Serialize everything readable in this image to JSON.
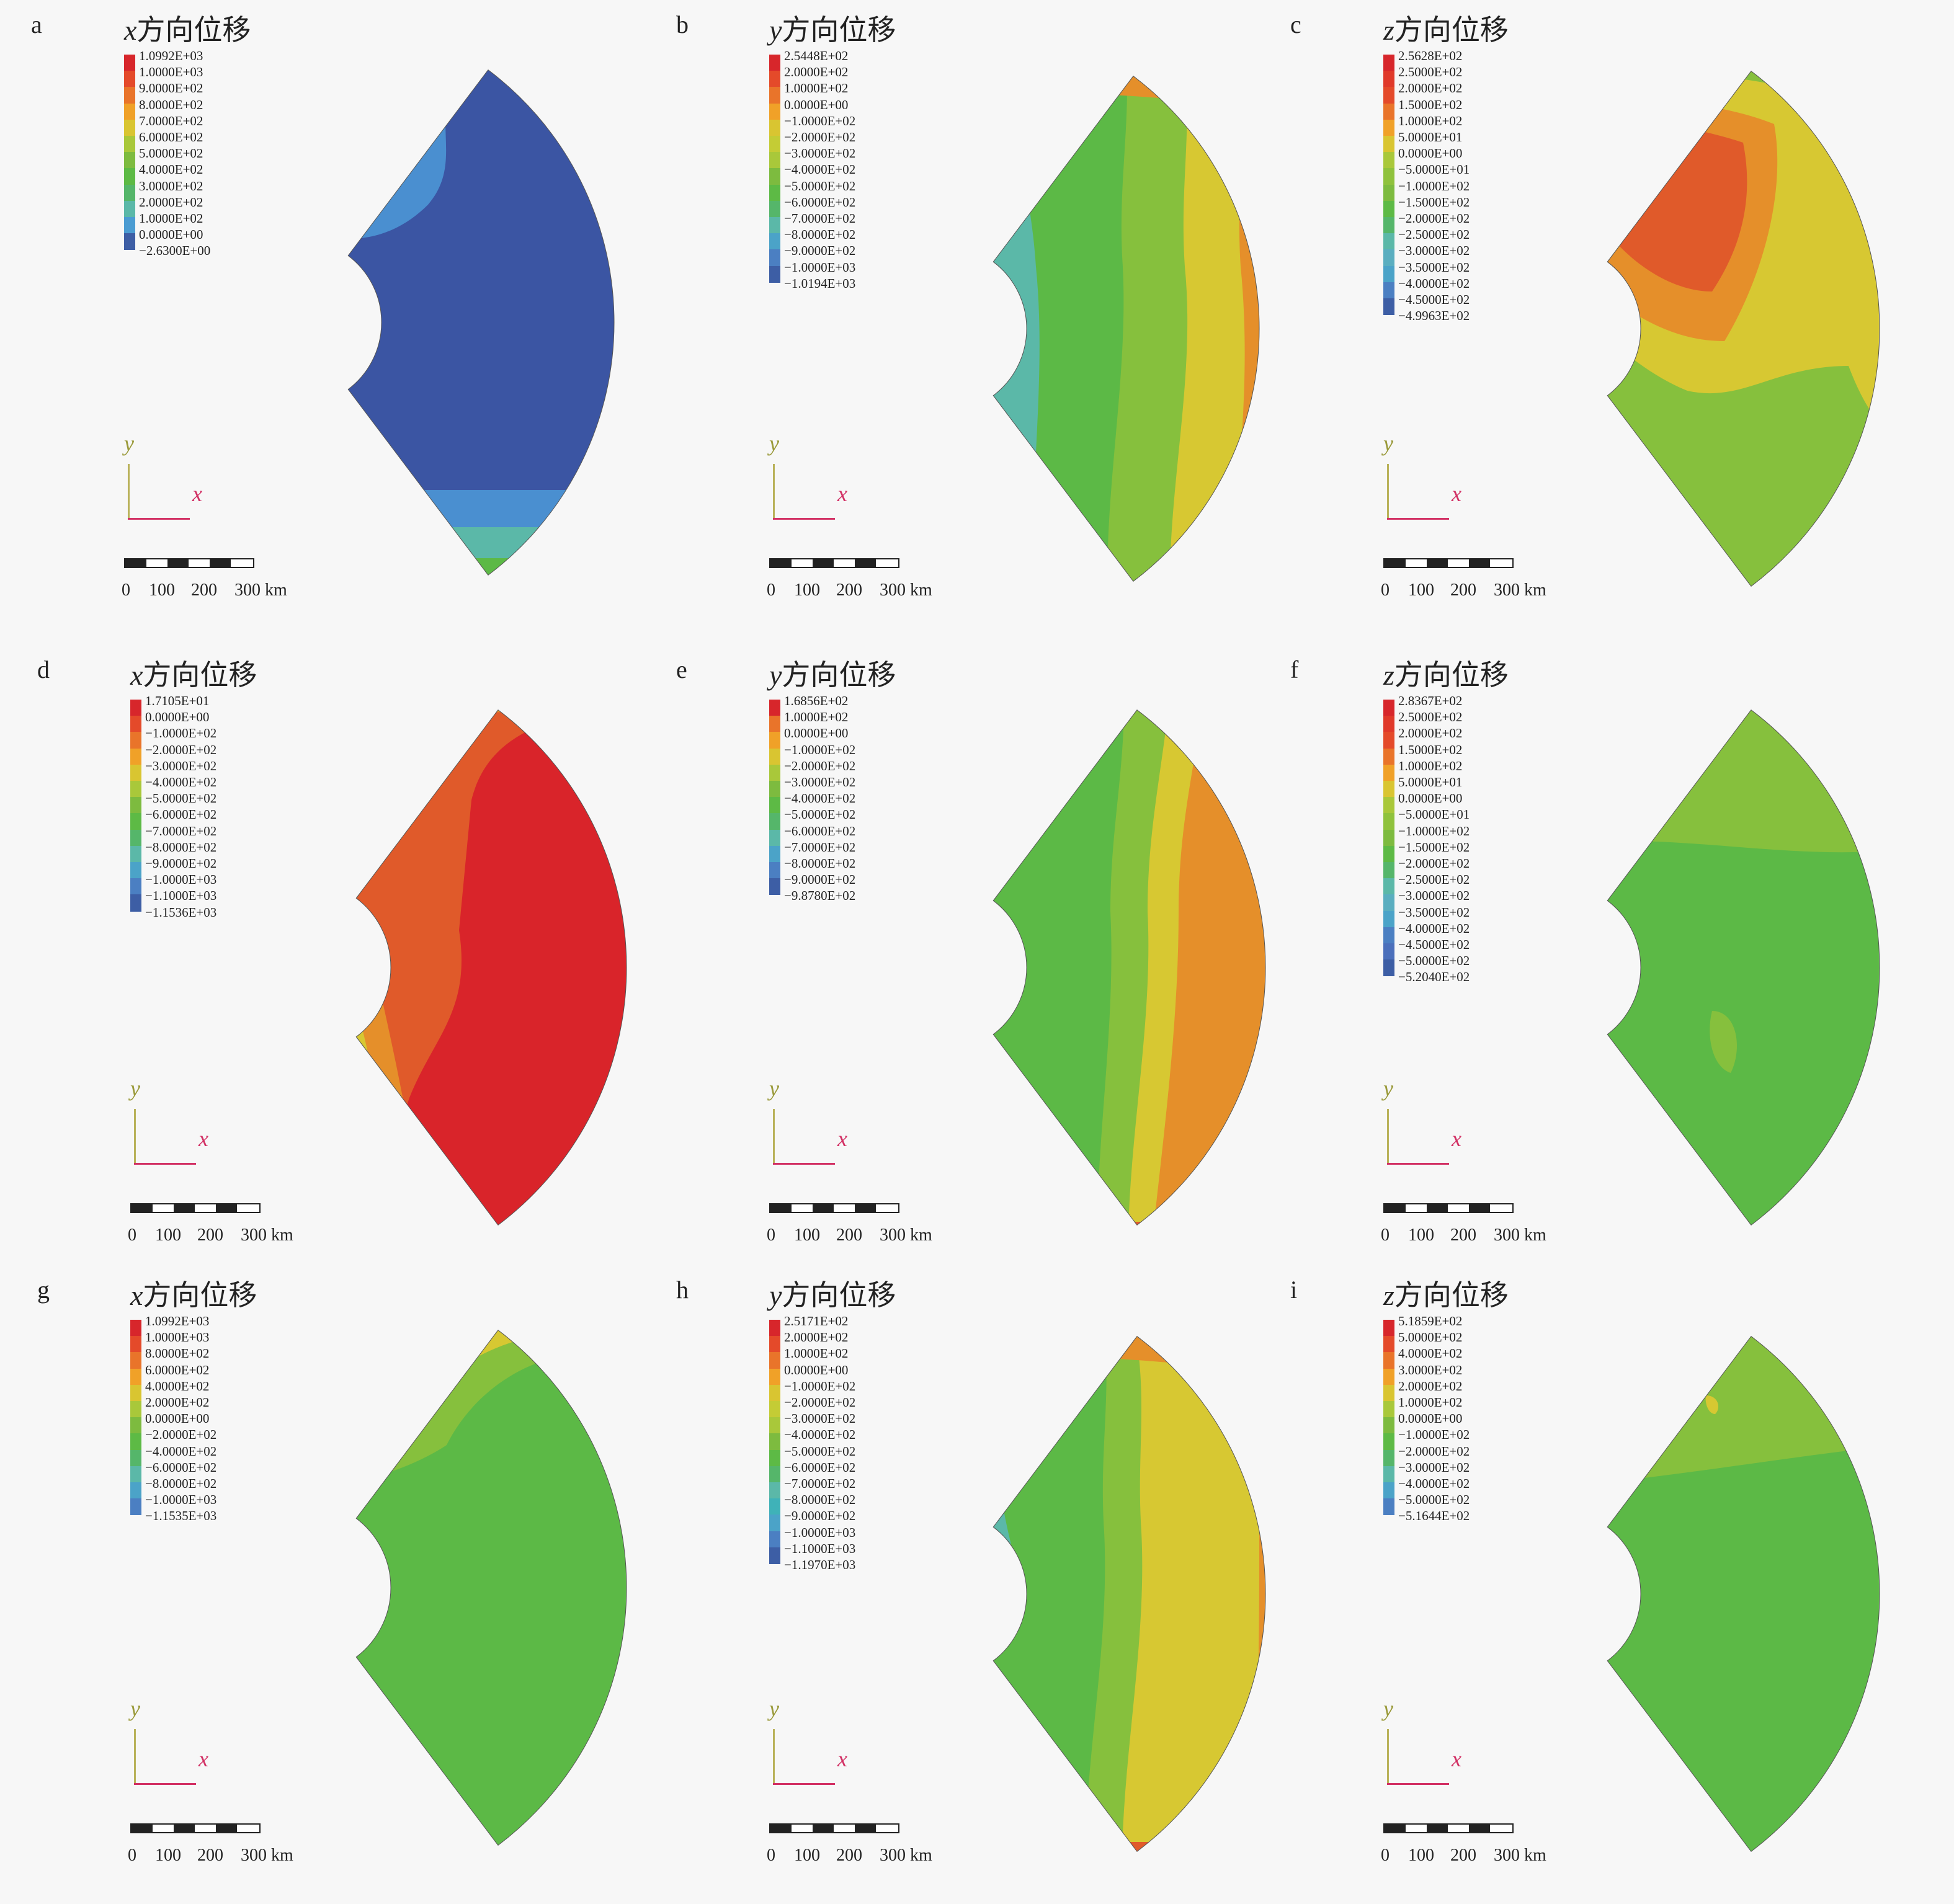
{
  "panels": [
    {
      "id": "a",
      "title_var": "x",
      "title_rest": "方向位移",
      "legend": [
        "1.0992E+03",
        "1.0000E+03",
        "9.0000E+02",
        "8.0000E+02",
        "7.0000E+02",
        "6.0000E+02",
        "5.0000E+02",
        "4.0000E+02",
        "3.0000E+02",
        "2.0000E+02",
        "1.0000E+02",
        "0.0000E+00",
        "−2.6300E+00"
      ],
      "colors": [
        "#d7262b",
        "#e44a2a",
        "#e9742a",
        "#f0a128",
        "#d9c531",
        "#a9c83a",
        "#7dbb3f",
        "#5dba45",
        "#55b66a",
        "#5bb8a8",
        "#4b9cd2",
        "#3d5ea5",
        "#3b4ea0"
      ]
    },
    {
      "id": "b",
      "title_var": "y",
      "title_rest": "方向位移",
      "legend": [
        "2.5448E+02",
        "2.0000E+02",
        "1.0000E+02",
        "0.0000E+00",
        "−1.0000E+02",
        "−2.0000E+02",
        "−3.0000E+02",
        "−4.0000E+02",
        "−5.0000E+02",
        "−6.0000E+02",
        "−7.0000E+02",
        "−8.0000E+02",
        "−9.0000E+02",
        "−1.0000E+03",
        "−1.0194E+03"
      ],
      "colors": [
        "#d7262b",
        "#e44a2a",
        "#e9742a",
        "#f0a128",
        "#d9c531",
        "#c4cc35",
        "#a9c83a",
        "#7dbb3f",
        "#5dba45",
        "#55b66a",
        "#5bb8a8",
        "#4ba3c8",
        "#4b7fc2",
        "#3d5ea5",
        "#3b4ea0"
      ]
    },
    {
      "id": "c",
      "title_var": "z",
      "title_rest": "方向位移",
      "legend": [
        "2.5628E+02",
        "2.5000E+02",
        "2.0000E+02",
        "1.5000E+02",
        "1.0000E+02",
        "5.0000E+01",
        "0.0000E+00",
        "−5.0000E+01",
        "−1.0000E+02",
        "−1.5000E+02",
        "−2.0000E+02",
        "−2.5000E+02",
        "−3.0000E+02",
        "−3.5000E+02",
        "−4.0000E+02",
        "−4.5000E+02",
        "−4.9963E+02"
      ],
      "colors": [
        "#d7262b",
        "#e0392a",
        "#e44a2a",
        "#e9742a",
        "#f0a128",
        "#d9c531",
        "#a9c83a",
        "#8fc23c",
        "#7dbb3f",
        "#5dba45",
        "#55b66a",
        "#5bb8a8",
        "#5aaec0",
        "#4ba3c8",
        "#4b7fc2",
        "#3d5ea5",
        "#3b4ea0"
      ]
    },
    {
      "id": "d",
      "title_var": "x",
      "title_rest": "方向位移",
      "legend": [
        "1.7105E+01",
        "0.0000E+00",
        "−1.0000E+02",
        "−2.0000E+02",
        "−3.0000E+02",
        "−4.0000E+02",
        "−5.0000E+02",
        "−6.0000E+02",
        "−7.0000E+02",
        "−8.0000E+02",
        "−9.0000E+02",
        "−1.0000E+03",
        "−1.1000E+03",
        "−1.1536E+03"
      ],
      "colors": [
        "#d7262b",
        "#e44a2a",
        "#e9742a",
        "#f0a128",
        "#d9c531",
        "#a9c83a",
        "#7dbb3f",
        "#5dba45",
        "#55b66a",
        "#5bb8a8",
        "#4ba3c8",
        "#4b7fc2",
        "#3d5ea5",
        "#3b4ea0"
      ]
    },
    {
      "id": "e",
      "title_var": "y",
      "title_rest": "方向位移",
      "legend": [
        "1.6856E+02",
        "1.0000E+02",
        "0.0000E+00",
        "−1.0000E+02",
        "−2.0000E+02",
        "−3.0000E+02",
        "−4.0000E+02",
        "−5.0000E+02",
        "−6.0000E+02",
        "−7.0000E+02",
        "−8.0000E+02",
        "−9.0000E+02",
        "−9.8780E+02"
      ],
      "colors": [
        "#d7262b",
        "#e9742a",
        "#f0a128",
        "#d9c531",
        "#a9c83a",
        "#7dbb3f",
        "#5dba45",
        "#55b66a",
        "#5bb8a8",
        "#4ba3c8",
        "#4b7fc2",
        "#3d5ea5",
        "#3b4ea0"
      ]
    },
    {
      "id": "f",
      "title_var": "z",
      "title_rest": "方向位移",
      "legend": [
        "2.8367E+02",
        "2.5000E+02",
        "2.0000E+02",
        "1.5000E+02",
        "1.0000E+02",
        "5.0000E+01",
        "0.0000E+00",
        "−5.0000E+01",
        "−1.0000E+02",
        "−1.5000E+02",
        "−2.0000E+02",
        "−2.5000E+02",
        "−3.0000E+02",
        "−3.5000E+02",
        "−4.0000E+02",
        "−4.5000E+02",
        "−5.0000E+02",
        "−5.2040E+02"
      ],
      "colors": [
        "#d7262b",
        "#e0392a",
        "#e44a2a",
        "#e9742a",
        "#f0a128",
        "#d9c531",
        "#a9c83a",
        "#8fc23c",
        "#7dbb3f",
        "#5dba45",
        "#55b66a",
        "#5bb8a8",
        "#5aaec0",
        "#4ba3c8",
        "#4b7fc2",
        "#4b6fbb",
        "#3d5ea5",
        "#3b4ea0"
      ]
    },
    {
      "id": "g",
      "title_var": "x",
      "title_rest": "方向位移",
      "legend": [
        "1.0992E+03",
        "1.0000E+03",
        "8.0000E+02",
        "6.0000E+02",
        "4.0000E+02",
        "2.0000E+02",
        "0.0000E+00",
        "−2.0000E+02",
        "−4.0000E+02",
        "−6.0000E+02",
        "−8.0000E+02",
        "−1.0000E+03",
        "−1.1535E+03"
      ],
      "colors": [
        "#d7262b",
        "#e44a2a",
        "#e9742a",
        "#f0a128",
        "#d9c531",
        "#a9c83a",
        "#7dbb3f",
        "#5dba45",
        "#55b66a",
        "#5bb8a8",
        "#4ba3c8",
        "#4b7fc2",
        "#3b4ea0"
      ]
    },
    {
      "id": "h",
      "title_var": "y",
      "title_rest": "方向位移",
      "legend": [
        "2.5171E+02",
        "2.0000E+02",
        "1.0000E+02",
        "0.0000E+00",
        "−1.0000E+02",
        "−2.0000E+02",
        "−3.0000E+02",
        "−4.0000E+02",
        "−5.0000E+02",
        "−6.0000E+02",
        "−7.0000E+02",
        "−8.0000E+02",
        "−9.0000E+02",
        "−1.0000E+03",
        "−1.1000E+03",
        "−1.1970E+03"
      ],
      "colors": [
        "#d7262b",
        "#e44a2a",
        "#e9742a",
        "#f0a128",
        "#d9c531",
        "#c4cc35",
        "#a9c83a",
        "#7dbb3f",
        "#5dba45",
        "#55b66a",
        "#5bb8a8",
        "#3fb2b8",
        "#4ba3c8",
        "#4b7fc2",
        "#3d5ea5",
        "#3b4ea0"
      ]
    },
    {
      "id": "i",
      "title_var": "z",
      "title_rest": "方向位移",
      "legend": [
        "5.1859E+02",
        "5.0000E+02",
        "4.0000E+02",
        "3.0000E+02",
        "2.0000E+02",
        "1.0000E+02",
        "0.0000E+00",
        "−1.0000E+02",
        "−2.0000E+02",
        "−3.0000E+02",
        "−4.0000E+02",
        "−5.0000E+02",
        "−5.1644E+02"
      ],
      "colors": [
        "#d7262b",
        "#e44a2a",
        "#e9742a",
        "#f0a128",
        "#d9c531",
        "#a9c83a",
        "#7dbb3f",
        "#5dba45",
        "#55b66a",
        "#5bb8a8",
        "#4ba3c8",
        "#4b7fc2",
        "#3b4ea0"
      ]
    }
  ],
  "axis_labels": {
    "y": "y",
    "x": "x"
  },
  "scale_labels": [
    "0",
    "100",
    "200",
    "300 km"
  ],
  "colors": {
    "blue_dark": "#3b55a3",
    "blue": "#4a8fd0",
    "cyan": "#5bb8a8",
    "green": "#5cb946",
    "lime": "#86c03d",
    "yellow": "#d7c832",
    "orange": "#e58f2a",
    "red_orange": "#e05a2a",
    "red": "#d9242a"
  }
}
